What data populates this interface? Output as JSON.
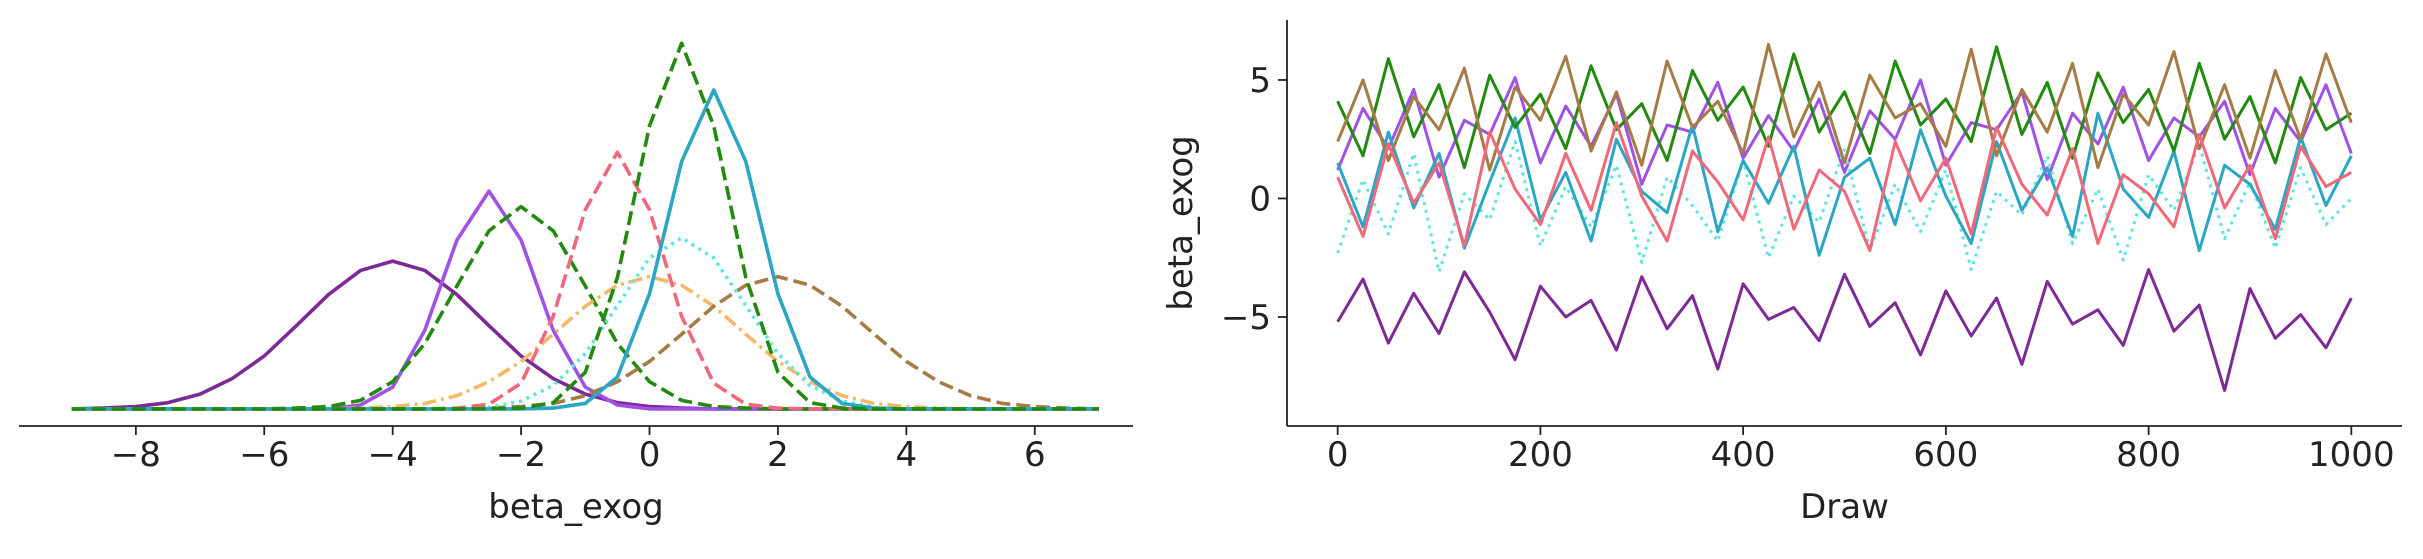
{
  "chart_data": [
    {
      "type": "line",
      "xlabel": "beta_exog",
      "xlim": [
        -9.82,
        7.53
      ],
      "ylim": [
        -0.022,
        0.5
      ],
      "xticks": [
        {
          "value": -8,
          "label": "−8"
        },
        {
          "value": -6,
          "label": "−6"
        },
        {
          "value": -4,
          "label": "−4"
        },
        {
          "value": -2,
          "label": "−2"
        },
        0,
        2,
        4,
        6
      ],
      "spines": [
        "bottom"
      ],
      "x": [
        -9,
        -8.5,
        -8,
        -7.5,
        -7,
        -6.5,
        -6,
        -5.5,
        -5,
        -4.5,
        -4,
        -3.5,
        -3,
        -2.5,
        -2,
        -1.5,
        -1,
        -0.5,
        0,
        0.5,
        1,
        1.5,
        2,
        2.5,
        3,
        3.5,
        4,
        4.5,
        5,
        5.5,
        6,
        6.5,
        7
      ],
      "series": [
        {
          "color": "#7d2a96",
          "linestyle": "solid",
          "values": [
            0,
            0.001,
            0.003,
            0.008,
            0.019,
            0.039,
            0.068,
            0.107,
            0.147,
            0.178,
            0.19,
            0.178,
            0.147,
            0.107,
            0.068,
            0.039,
            0.019,
            0.008,
            0.003,
            0.001,
            0,
            0,
            0,
            0,
            0,
            0,
            0,
            0,
            0,
            0,
            0,
            0,
            0
          ]
        },
        {
          "color": "#a052e6",
          "linestyle": "solid",
          "values": [
            0,
            0,
            0,
            0,
            0,
            0,
            0,
            0,
            0,
            0.005,
            0.028,
            0.101,
            0.217,
            0.28,
            0.217,
            0.101,
            0.028,
            0.005,
            0,
            0,
            0,
            0,
            0,
            0,
            0,
            0,
            0,
            0,
            0,
            0,
            0,
            0,
            0
          ]
        },
        {
          "color": "#228a0e",
          "linestyle": "dashed",
          "values": [
            0,
            0,
            0,
            0,
            0,
            0,
            0,
            0.001,
            0.003,
            0.011,
            0.035,
            0.084,
            0.158,
            0.229,
            0.26,
            0.229,
            0.158,
            0.084,
            0.035,
            0.011,
            0.003,
            0.001,
            0,
            0,
            0,
            0,
            0,
            0,
            0,
            0,
            0,
            0,
            0
          ]
        },
        {
          "color": "#f5b865",
          "linestyle": "dashdot",
          "values": [
            0,
            0,
            0,
            0,
            0,
            0,
            0,
            0,
            0,
            0.001,
            0.003,
            0.007,
            0.017,
            0.035,
            0.061,
            0.096,
            0.132,
            0.159,
            0.17,
            0.159,
            0.132,
            0.096,
            0.061,
            0.035,
            0.017,
            0.007,
            0.003,
            0.001,
            0,
            0,
            0,
            0,
            0
          ]
        },
        {
          "color": "#a57b46",
          "linestyle": "dashed",
          "values": [
            0,
            0,
            0,
            0,
            0,
            0,
            0,
            0,
            0,
            0,
            0,
            0,
            0,
            0.001,
            0.003,
            0.007,
            0.017,
            0.035,
            0.061,
            0.096,
            0.132,
            0.159,
            0.17,
            0.159,
            0.132,
            0.096,
            0.061,
            0.035,
            0.017,
            0.007,
            0.003,
            0.001,
            0
          ]
        },
        {
          "color": "#5ce6dc",
          "linestyle": "dotted",
          "values": [
            0,
            0,
            0,
            0,
            0,
            0,
            0,
            0,
            0,
            0,
            0,
            0,
            0,
            0.002,
            0.01,
            0.03,
            0.071,
            0.133,
            0.194,
            0.22,
            0.194,
            0.133,
            0.071,
            0.03,
            0.01,
            0.002,
            0,
            0,
            0,
            0,
            0,
            0,
            0
          ]
        },
        {
          "color": "#f0697a",
          "linestyle": "dashed",
          "values": [
            0,
            0,
            0,
            0,
            0,
            0,
            0,
            0,
            0,
            0,
            0,
            0,
            0.001,
            0.006,
            0.033,
            0.119,
            0.256,
            0.33,
            0.256,
            0.119,
            0.033,
            0.006,
            0.001,
            0,
            0,
            0,
            0,
            0,
            0,
            0,
            0,
            0,
            0
          ]
        },
        {
          "color": "#2ba6c4",
          "linestyle": "solid",
          "values": [
            0,
            0,
            0,
            0,
            0,
            0,
            0,
            0,
            0,
            0,
            0,
            0,
            0,
            0,
            0,
            0.001,
            0.007,
            0.041,
            0.148,
            0.318,
            0.41,
            0.318,
            0.148,
            0.041,
            0.007,
            0.001,
            0,
            0,
            0,
            0,
            0,
            0,
            0
          ]
        },
        {
          "color": "#228a0e",
          "linestyle": "dashed",
          "values": [
            0,
            0,
            0,
            0,
            0,
            0,
            0,
            0,
            0,
            0,
            0,
            0,
            0,
            0,
            0.001,
            0.008,
            0.047,
            0.169,
            0.364,
            0.47,
            0.364,
            0.169,
            0.047,
            0.008,
            0.001,
            0,
            0,
            0,
            0,
            0,
            0,
            0,
            0
          ]
        }
      ]
    },
    {
      "type": "line",
      "xlabel": "Draw",
      "ylabel": "beta_exog",
      "xlim": [
        -50,
        1050
      ],
      "ylim": [
        -9.6,
        7.53
      ],
      "xticks": [
        0,
        200,
        400,
        600,
        800,
        1000
      ],
      "yticks": [
        {
          "value": -5,
          "label": "−5"
        },
        0,
        5
      ],
      "spines": [
        "left",
        "bottom"
      ],
      "x": [
        0,
        25,
        50,
        75,
        100,
        125,
        150,
        175,
        200,
        225,
        250,
        275,
        300,
        325,
        350,
        375,
        400,
        425,
        450,
        475,
        500,
        525,
        550,
        575,
        600,
        625,
        650,
        675,
        700,
        725,
        750,
        775,
        800,
        825,
        850,
        875,
        900,
        925,
        950,
        975,
        1000
      ],
      "series": [
        {
          "color": "#a052e6",
          "linestyle": "solid",
          "values": [
            1.2,
            3.8,
            2.1,
            4.6,
            0.9,
            3.3,
            2.7,
            5.1,
            1.5,
            3.9,
            2.2,
            4.4,
            0.6,
            3.1,
            2.8,
            4.9,
            1.7,
            3.5,
            2.0,
            4.2,
            1.1,
            3.7,
            2.5,
            5.0,
            1.4,
            3.2,
            2.9,
            4.5,
            0.8,
            3.6,
            2.3,
            4.7,
            1.6,
            3.4,
            2.6,
            4.1,
            1.0,
            3.8,
            2.4,
            4.8,
            1.9
          ]
        },
        {
          "color": "#5ce6dc",
          "linestyle": "dotted",
          "values": [
            -2.3,
            0.8,
            -1.5,
            1.9,
            -3.1,
            0.2,
            -0.9,
            2.4,
            -2.0,
            0.5,
            -1.2,
            1.4,
            -2.7,
            0.9,
            -0.3,
            -1.8,
            1.6,
            -2.5,
            0.1,
            -1.0,
            2.1,
            -2.2,
            0.6,
            -1.4,
            1.2,
            -3.0,
            0.3,
            -0.7,
            1.8,
            -1.9,
            0.4,
            -2.6,
            1.0,
            -0.5,
            2.3,
            -1.7,
            0.7,
            -2.1,
            1.3,
            -1.1,
            0.0
          ]
        },
        {
          "color": "#2ba6c4",
          "linestyle": "solid",
          "values": [
            1.5,
            -1.2,
            2.8,
            -0.4,
            1.9,
            -2.1,
            0.7,
            3.4,
            -0.9,
            1.1,
            -1.8,
            2.5,
            0.3,
            -0.6,
            3.1,
            -1.4,
            1.6,
            -0.2,
            2.2,
            -2.4,
            0.9,
            1.7,
            -1.1,
            2.9,
            0.1,
            -1.9,
            2.4,
            -0.5,
            1.3,
            -1.6,
            3.6,
            0.4,
            -0.8,
            2.0,
            -2.2,
            1.4,
            0.6,
            -1.3,
            2.6,
            -0.3,
            1.8
          ]
        },
        {
          "color": "#228a0e",
          "linestyle": "solid",
          "values": [
            4.1,
            1.8,
            5.9,
            2.6,
            4.8,
            1.3,
            5.2,
            3.0,
            4.4,
            2.1,
            5.6,
            2.9,
            4.0,
            1.6,
            5.4,
            3.3,
            4.7,
            2.2,
            6.1,
            2.8,
            4.5,
            1.9,
            5.8,
            3.1,
            4.2,
            2.4,
            6.4,
            2.7,
            4.9,
            1.7,
            5.3,
            3.2,
            4.6,
            2.0,
            5.7,
            2.5,
            4.3,
            1.5,
            5.1,
            2.9,
            3.6
          ]
        },
        {
          "color": "#a57b46",
          "linestyle": "solid",
          "values": [
            2.4,
            5.0,
            1.6,
            4.3,
            2.9,
            5.5,
            1.2,
            4.7,
            3.3,
            6.0,
            2.0,
            4.5,
            1.4,
            5.8,
            3.0,
            4.1,
            1.9,
            6.5,
            2.6,
            4.9,
            1.5,
            5.2,
            3.4,
            4.0,
            2.2,
            6.3,
            1.8,
            4.6,
            2.8,
            5.7,
            1.3,
            4.4,
            3.1,
            6.2,
            2.1,
            4.8,
            1.7,
            5.4,
            2.5,
            6.1,
            3.2
          ]
        },
        {
          "color": "#f0697a",
          "linestyle": "solid",
          "values": [
            0.9,
            -1.6,
            2.3,
            -0.2,
            1.5,
            -2.0,
            2.8,
            0.4,
            -1.1,
            1.9,
            -0.5,
            3.2,
            0.1,
            -1.8,
            2.0,
            0.7,
            -0.9,
            2.6,
            -1.3,
            1.2,
            0.3,
            -2.2,
            2.4,
            -0.1,
            1.7,
            -1.5,
            3.0,
            0.6,
            -0.7,
            2.1,
            -1.9,
            1.0,
            0.2,
            -1.2,
            2.7,
            -0.4,
            1.4,
            -1.7,
            2.2,
            0.5,
            1.1
          ]
        },
        {
          "color": "#7d2a96",
          "linestyle": "solid",
          "values": [
            -5.2,
            -3.4,
            -6.1,
            -4.0,
            -5.7,
            -3.1,
            -4.8,
            -6.8,
            -3.7,
            -5.0,
            -4.3,
            -6.4,
            -3.3,
            -5.5,
            -4.1,
            -7.2,
            -3.6,
            -5.1,
            -4.6,
            -6.0,
            -3.2,
            -5.4,
            -4.4,
            -6.6,
            -3.9,
            -5.8,
            -4.2,
            -7.0,
            -3.5,
            -5.3,
            -4.7,
            -6.2,
            -3.0,
            -5.6,
            -4.5,
            -8.1,
            -3.8,
            -5.9,
            -4.9,
            -6.3,
            -4.2
          ]
        }
      ]
    }
  ]
}
